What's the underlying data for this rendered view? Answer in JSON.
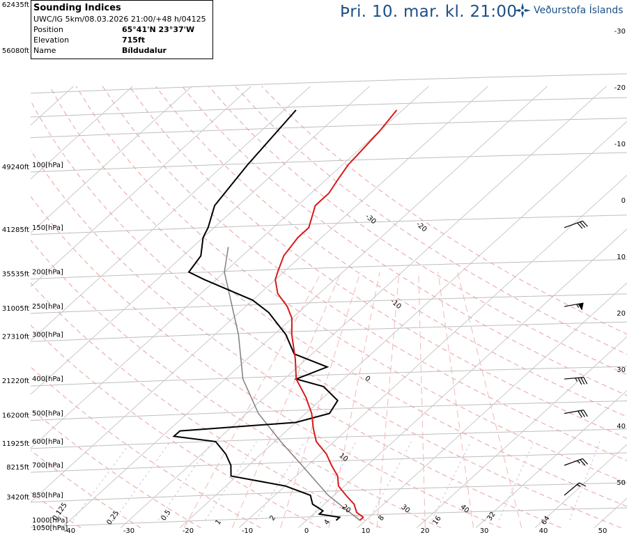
{
  "header": {
    "title": "Sounding Indices",
    "model_line": "UWC/IG 5km/08.03.2026 21:00/+48 h/04125",
    "fields": [
      {
        "label": "Position",
        "value": "65°41'N 23°37'W"
      },
      {
        "label": "Elevation",
        "value": "715ft"
      },
      {
        "label": "Name",
        "value": "Bíldudalur"
      }
    ],
    "valid_time": "Þri. 10. mar. kl. 21:00",
    "brand": "Veðurstofa Íslands"
  },
  "chart_data": {
    "type": "skew-t",
    "pressure_levels": [
      {
        "p": 100,
        "label": "100[hPa]",
        "alt": "49240ft"
      },
      {
        "p": 150,
        "label": "150[hPa]",
        "alt": "41285ft"
      },
      {
        "p": 200,
        "label": "200[hPa]",
        "alt": "35535ft"
      },
      {
        "p": 250,
        "label": "250[hPa]",
        "alt": "31005ft"
      },
      {
        "p": 300,
        "label": "300[hPa]",
        "alt": "27310ft"
      },
      {
        "p": 400,
        "label": "400[hPa]",
        "alt": "21220ft"
      },
      {
        "p": 500,
        "label": "500[hPa]",
        "alt": "16200ft"
      },
      {
        "p": 600,
        "label": "600[hPa]",
        "alt": "11925ft"
      },
      {
        "p": 700,
        "label": "700[hPa]",
        "alt": "8215ft"
      },
      {
        "p": 850,
        "label": "850[hPa]",
        "alt": "3420ft"
      },
      {
        "p": 1000,
        "label": "1000[hPa]",
        "alt": ""
      },
      {
        "p": 1050,
        "label": "1050[hPa]",
        "alt": ""
      }
    ],
    "top_altitudes": [
      "62435ft",
      "56080ft"
    ],
    "isotherm_labels": [
      "40",
      "30",
      "20",
      "10",
      "0",
      "-10",
      "-20",
      "-30"
    ],
    "isotherm_axis_labels": [
      "-40",
      "-30",
      "-20",
      "-10",
      "0",
      "10",
      "20",
      "30",
      "40",
      "50"
    ],
    "mixing_ratio_labels": [
      "0.125",
      "0.25",
      "0.5",
      "1",
      "2",
      "4",
      "8",
      "16",
      "32",
      "64"
    ],
    "right_axis_labels": [
      "-30",
      "-20",
      "-10",
      "0",
      "10",
      "20",
      "30",
      "40",
      "50"
    ],
    "temperature": [
      [
        1000,
        9
      ],
      [
        980,
        9
      ],
      [
        950,
        7
      ],
      [
        900,
        5
      ],
      [
        850,
        2
      ],
      [
        800,
        -1
      ],
      [
        750,
        -3
      ],
      [
        700,
        -6
      ],
      [
        650,
        -9
      ],
      [
        600,
        -13
      ],
      [
        550,
        -16
      ],
      [
        500,
        -19
      ],
      [
        450,
        -23
      ],
      [
        400,
        -28
      ],
      [
        350,
        -32
      ],
      [
        300,
        -37
      ],
      [
        270,
        -40
      ],
      [
        250,
        -43
      ],
      [
        230,
        -47
      ],
      [
        210,
        -50
      ],
      [
        200,
        -51
      ],
      [
        180,
        -53
      ],
      [
        160,
        -54
      ],
      [
        150,
        -54
      ],
      [
        130,
        -57
      ],
      [
        120,
        -57
      ],
      [
        110,
        -58
      ],
      [
        100,
        -59
      ],
      [
        80,
        -60
      ],
      [
        70,
        -61
      ]
    ],
    "dewpoint": [
      [
        1000,
        5
      ],
      [
        980,
        5
      ],
      [
        960,
        1
      ],
      [
        940,
        1
      ],
      [
        900,
        -2
      ],
      [
        850,
        -4
      ],
      [
        800,
        -10
      ],
      [
        750,
        -21
      ],
      [
        700,
        -23
      ],
      [
        650,
        -26
      ],
      [
        600,
        -30
      ],
      [
        580,
        -38
      ],
      [
        560,
        -38
      ],
      [
        530,
        -20
      ],
      [
        500,
        -16
      ],
      [
        460,
        -17
      ],
      [
        420,
        -22
      ],
      [
        400,
        -28
      ],
      [
        370,
        -25
      ],
      [
        340,
        -33
      ],
      [
        300,
        -38
      ],
      [
        260,
        -45
      ],
      [
        240,
        -50
      ],
      [
        210,
        -62
      ],
      [
        200,
        -66
      ],
      [
        180,
        -67
      ],
      [
        160,
        -70
      ],
      [
        150,
        -71
      ],
      [
        130,
        -74
      ],
      [
        100,
        -76
      ],
      [
        70,
        -78
      ]
    ],
    "parcel": [
      [
        1000,
        9
      ],
      [
        850,
        -1
      ],
      [
        700,
        -11
      ],
      [
        600,
        -19
      ],
      [
        500,
        -28
      ],
      [
        400,
        -37
      ],
      [
        300,
        -46
      ],
      [
        200,
        -60
      ],
      [
        170,
        -64
      ]
    ],
    "wind_barbs": [
      {
        "p": 850,
        "speed": 15,
        "dir": 230
      },
      {
        "p": 700,
        "speed": 25,
        "dir": 250
      },
      {
        "p": 500,
        "speed": 30,
        "dir": 260
      },
      {
        "p": 400,
        "speed": 35,
        "dir": 265
      },
      {
        "p": 250,
        "speed": 55,
        "dir": 260
      },
      {
        "p": 150,
        "speed": 30,
        "dir": 250
      }
    ],
    "colors": {
      "temperature": "#d61a1a",
      "dewpoint": "#000000",
      "parcel": "#7f7f7f",
      "dry_adiabat": "#e8a0a0",
      "mixing_ratio": "#cfc2dc",
      "isotherm": "#c8c8c8",
      "isobar": "#bebebe"
    }
  }
}
